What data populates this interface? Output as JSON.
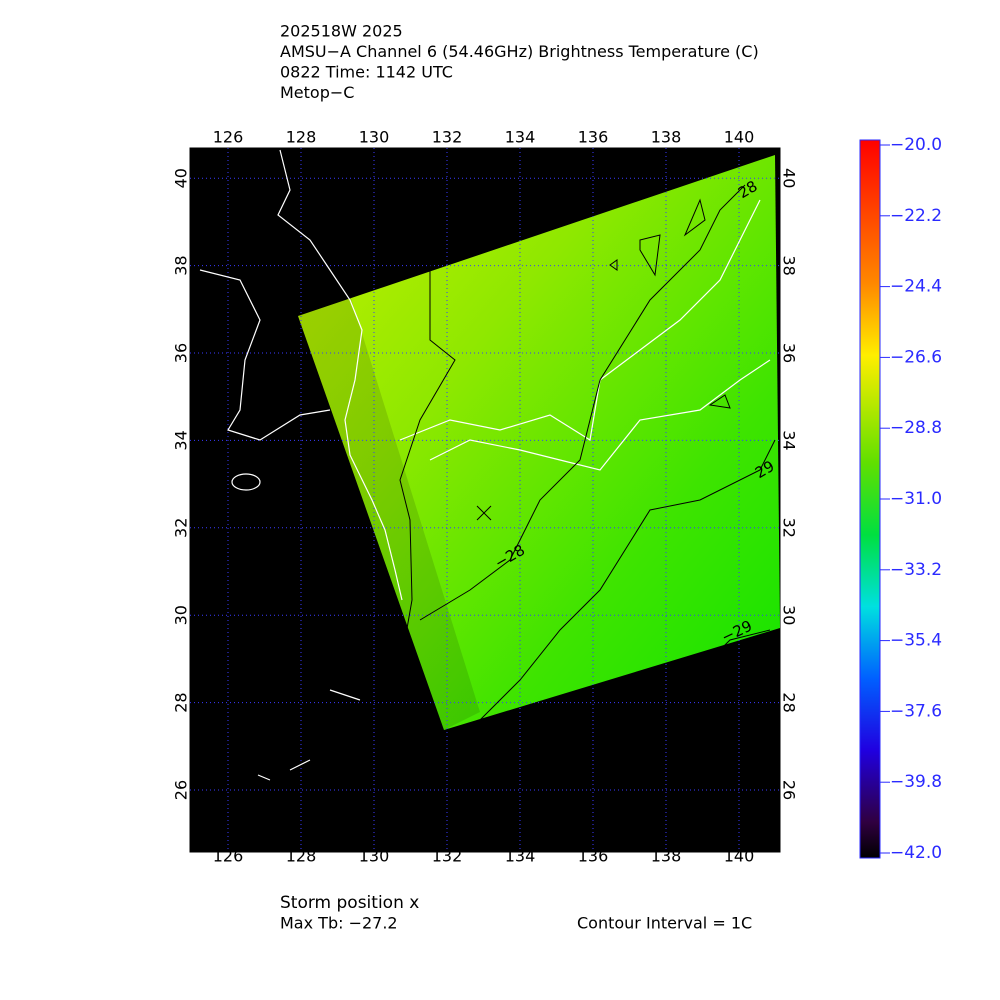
{
  "header": {
    "lines": [
      "202518W 2025",
      "AMSU−A Channel 6 (54.46GHz) Brightness Temperature (C)",
      "0822 Time: 1142 UTC",
      "Metop−C"
    ]
  },
  "map": {
    "lon_labels": [
      "126",
      "128",
      "130",
      "132",
      "134",
      "136",
      "138",
      "140"
    ],
    "lat_labels": [
      "26",
      "28",
      "30",
      "32",
      "34",
      "36",
      "38",
      "40"
    ],
    "contour_labels": [
      "28",
      "−28",
      "29",
      "−29"
    ]
  },
  "colorbar": {
    "labels": [
      "−20.0",
      "−22.2",
      "−24.4",
      "−26.6",
      "−28.8",
      "−31.0",
      "−33.2",
      "−35.4",
      "−37.6",
      "−39.8",
      "−42.0"
    ]
  },
  "footer": {
    "storm_position": "Storm position x",
    "max_tb": "Max Tb: −27.2",
    "contour_interval": "Contour Interval = 1C"
  }
}
